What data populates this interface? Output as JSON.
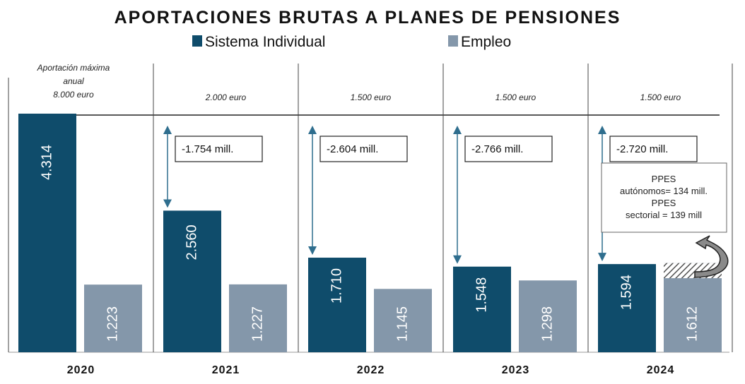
{
  "chart_data": {
    "type": "bar",
    "title": "APORTACIONES BRUTAS A PLANES DE PENSIONES",
    "legend_position": "top",
    "categories": [
      "2020",
      "2021",
      "2022",
      "2023",
      "2024"
    ],
    "series": [
      {
        "name": "Sistema Individual",
        "color": "#0f4c6b",
        "values": [
          4314,
          2560,
          1710,
          1548,
          1594
        ],
        "labels": [
          "4.314",
          "2.560",
          "1.710",
          "1.548",
          "1.594"
        ]
      },
      {
        "name": "Empleo",
        "color": "#8497aa",
        "values": [
          1223,
          1227,
          1145,
          1298,
          1612
        ],
        "labels": [
          "1.223",
          "1.227",
          "1.145",
          "1.298",
          "1.612"
        ]
      }
    ],
    "max_contribution_caption": [
      "Aportación máxima",
      "anual"
    ],
    "max_contribution": [
      "8.000 euro",
      "2.000 euro",
      "1.500 euro",
      "1.500 euro",
      "1.500 euro"
    ],
    "drops": [
      "",
      "-1.754 mill.",
      "-2.604 mill.",
      "-2.766 mill.",
      "-2.720 mill."
    ],
    "hatched_2024_empleo": 273,
    "note_2024": [
      "PPES",
      "autónomos= 134 mill.",
      "PPES",
      "sectorial = 139 mill"
    ],
    "grid": false
  }
}
